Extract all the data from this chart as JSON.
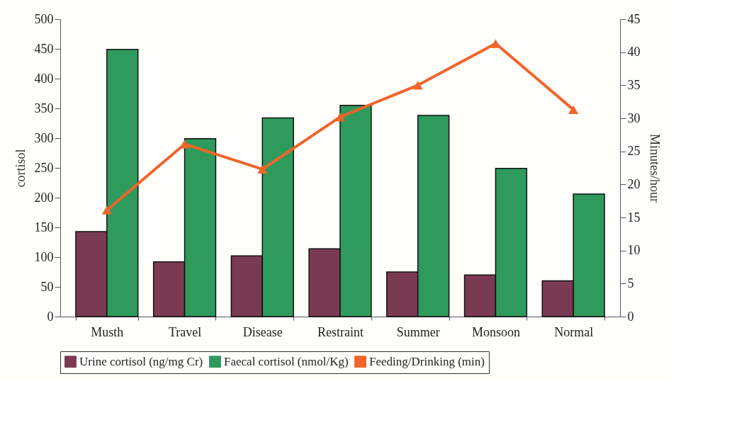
{
  "chart_data": {
    "type": "bar",
    "ylabel": "cortisol",
    "y2label": "Minutes/hour",
    "categories": [
      "Musth",
      "Travel",
      "Disease",
      "Restraint",
      "Summer",
      "Monsoon",
      "Normal"
    ],
    "series": [
      {
        "name": "Urine cortisol (ng/mg Cr)",
        "color": "#7a3a52",
        "values": [
          143,
          92,
          102,
          114,
          75,
          70,
          60
        ]
      },
      {
        "name": "Faecal cortisol (nmol/Kg)",
        "color": "#2e9a5c",
        "values": [
          449,
          299,
          334,
          355,
          338,
          249,
          206
        ]
      },
      {
        "name": "Feeding/Drinking (min)",
        "type": "line",
        "axis": "y2",
        "color": "#f0642a",
        "values": [
          16.1,
          26.1,
          22.3,
          30.2,
          35.0,
          41.3,
          31.3
        ]
      }
    ],
    "ylim": [
      0,
      500
    ],
    "yticks": [
      0,
      50,
      100,
      150,
      200,
      250,
      300,
      350,
      400,
      450,
      500
    ],
    "y2lim": [
      0,
      45
    ],
    "y2ticks": [
      0,
      5,
      10,
      15,
      20,
      25,
      30,
      35,
      40,
      45
    ],
    "marker": "triangle",
    "legend": "bottom",
    "grid": false
  }
}
